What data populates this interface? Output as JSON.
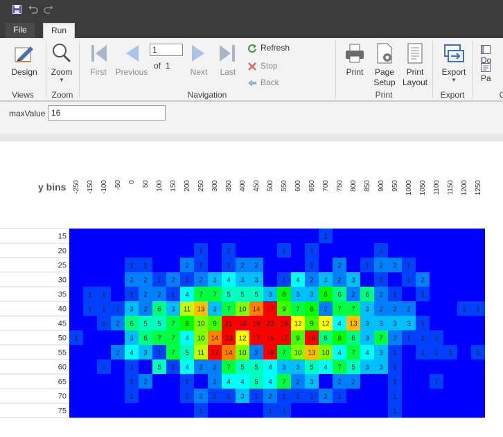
{
  "tabs": {
    "file": "File",
    "run": "Run"
  },
  "ribbon": {
    "design": "Design",
    "zoom": "Zoom",
    "first": "First",
    "previous": "Previous",
    "page_value": "1",
    "of_label": "of",
    "total_pages": "1",
    "next": "Next",
    "last": "Last",
    "refresh": "Refresh",
    "stop": "Stop",
    "back": "Back",
    "print": "Print",
    "page_setup_1": "Page",
    "page_setup_2": "Setup",
    "print_layout_1": "Print",
    "print_layout_2": "Layout",
    "export": "Export",
    "doc_partial": "Do",
    "pa_partial": "Pa",
    "groups": {
      "views": "Views",
      "zoom": "Zoom",
      "navigation": "Navigation",
      "print": "Print",
      "export": "Export",
      "partial": "C"
    }
  },
  "params": {
    "label": "maxValue",
    "value": "16"
  },
  "chart_data": {
    "type": "heatmap",
    "title": "y bins",
    "x_bins": [
      "-250",
      "-150",
      "-100",
      "-50",
      "0",
      "50",
      "100",
      "150",
      "200",
      "250",
      "300",
      "350",
      "400",
      "450",
      "500",
      "550",
      "600",
      "650",
      "700",
      "750",
      "800",
      "850",
      "900",
      "950",
      "1000",
      "1050",
      "1100",
      "1150",
      "1200",
      "1250"
    ],
    "y_bins": [
      "15",
      "20",
      "25",
      "30",
      "35",
      "40",
      "45",
      "50",
      "55",
      "60",
      "65",
      "70",
      "75"
    ],
    "max_value": 16,
    "colors": {
      "low": "#0000ff",
      "high": "#ff0000"
    },
    "values": [
      [
        0,
        0,
        0,
        0,
        0,
        0,
        0,
        0,
        0,
        0,
        0,
        0,
        0,
        0,
        0,
        0,
        0,
        0,
        1,
        0,
        0,
        0,
        0,
        0,
        0,
        0,
        0,
        0,
        0,
        0
      ],
      [
        0,
        0,
        0,
        0,
        0,
        0,
        0,
        0,
        0,
        1,
        0,
        1,
        0,
        0,
        0,
        1,
        0,
        1,
        0,
        0,
        0,
        0,
        1,
        0,
        0,
        0,
        0,
        0,
        0,
        0
      ],
      [
        0,
        0,
        0,
        0,
        1,
        1,
        0,
        0,
        2,
        1,
        0,
        1,
        2,
        2,
        0,
        0,
        0,
        1,
        0,
        2,
        0,
        1,
        2,
        2,
        1,
        0,
        0,
        0,
        0,
        0
      ],
      [
        0,
        0,
        0,
        0,
        2,
        2,
        1,
        2,
        1,
        2,
        3,
        4,
        3,
        3,
        0,
        1,
        4,
        2,
        3,
        2,
        3,
        0,
        1,
        0,
        1,
        2,
        0,
        0,
        0,
        0
      ],
      [
        0,
        1,
        1,
        0,
        1,
        2,
        2,
        1,
        4,
        7,
        7,
        5,
        5,
        5,
        3,
        8,
        3,
        3,
        8,
        6,
        2,
        6,
        2,
        1,
        0,
        1,
        0,
        0,
        0,
        0
      ],
      [
        0,
        1,
        1,
        1,
        3,
        2,
        6,
        3,
        11,
        13,
        3,
        7,
        10,
        14,
        17,
        9,
        7,
        8,
        2,
        7,
        7,
        3,
        2,
        2,
        2,
        0,
        0,
        0,
        1,
        1
      ],
      [
        0,
        0,
        1,
        2,
        6,
        5,
        5,
        7,
        8,
        10,
        9,
        21,
        16,
        19,
        22,
        16,
        12,
        9,
        12,
        4,
        13,
        3,
        3,
        3,
        3,
        1,
        0,
        0,
        0,
        0
      ],
      [
        1,
        0,
        0,
        0,
        3,
        6,
        7,
        7,
        4,
        10,
        14,
        23,
        12,
        17,
        16,
        17,
        9,
        19,
        6,
        8,
        6,
        3,
        7,
        2,
        1,
        1,
        1,
        0,
        0,
        0
      ],
      [
        0,
        0,
        0,
        2,
        4,
        3,
        1,
        7,
        5,
        11,
        17,
        14,
        10,
        2,
        19,
        7,
        10,
        13,
        10,
        4,
        7,
        4,
        3,
        1,
        0,
        1,
        1,
        1,
        0,
        1
      ],
      [
        0,
        0,
        1,
        0,
        1,
        0,
        5,
        1,
        4,
        2,
        2,
        7,
        5,
        5,
        4,
        3,
        3,
        5,
        4,
        7,
        5,
        3,
        3,
        1,
        0,
        0,
        0,
        0,
        0,
        0
      ],
      [
        0,
        0,
        0,
        0,
        1,
        2,
        0,
        0,
        1,
        0,
        2,
        4,
        4,
        5,
        4,
        7,
        2,
        3,
        0,
        2,
        2,
        0,
        0,
        1,
        0,
        0,
        1,
        0,
        0,
        0
      ],
      [
        0,
        0,
        0,
        0,
        1,
        0,
        0,
        0,
        1,
        2,
        1,
        1,
        3,
        1,
        2,
        1,
        1,
        1,
        2,
        1,
        0,
        0,
        0,
        1,
        0,
        0,
        0,
        0,
        0,
        0
      ],
      [
        0,
        0,
        0,
        0,
        0,
        0,
        0,
        0,
        0,
        1,
        0,
        0,
        0,
        0,
        1,
        1,
        0,
        0,
        0,
        0,
        0,
        0,
        0,
        1,
        0,
        0,
        0,
        0,
        0,
        0
      ]
    ]
  }
}
